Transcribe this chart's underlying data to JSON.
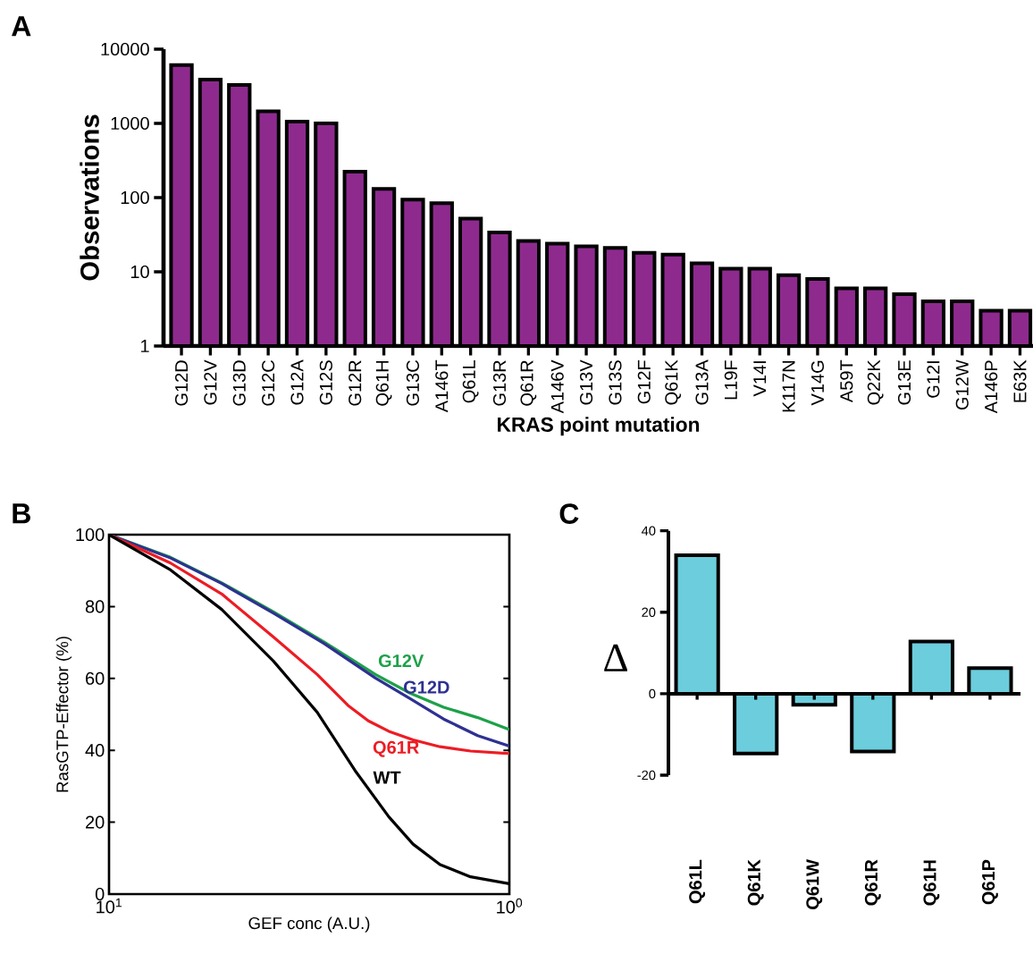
{
  "chart_data": [
    {
      "type": "bar",
      "title": "A",
      "xlabel": "KRAS point mutation",
      "ylabel": "Observations",
      "categories": [
        "G12D",
        "G12V",
        "G13D",
        "G12C",
        "G12A",
        "G12S",
        "G12R",
        "Q61H",
        "G13C",
        "A146T",
        "Q61L",
        "G13R",
        "Q61R",
        "A146V",
        "G13V",
        "G13S",
        "G12F",
        "Q61K",
        "G13A",
        "L19F",
        "V14I",
        "K117N",
        "V14G",
        "A59T",
        "Q22K",
        "G13E",
        "G12I",
        "G12W",
        "A146P",
        "E63K"
      ],
      "values": [
        6100,
        3900,
        3300,
        1450,
        1060,
        1000,
        224,
        131,
        94,
        84,
        52,
        34,
        26,
        24,
        22,
        21,
        18,
        17,
        13,
        11,
        11,
        9,
        8,
        6,
        6,
        5,
        4,
        4,
        3,
        3
      ],
      "color": "#8e2a8e",
      "log": "y",
      "ylim": [
        1,
        10000
      ],
      "yticks": [
        1,
        10,
        100,
        1000,
        10000
      ]
    },
    {
      "type": "line",
      "title": "B",
      "xlabel": "GEF conc (A.U.)",
      "ylabel": "RasGTP-Effector (%)",
      "log": "x",
      "xlim": [
        10,
        1
      ],
      "xticks": [
        {
          "value": 10,
          "label": "10$^{1}$"
        },
        {
          "value": 1,
          "label": "10$^{0}$"
        }
      ],
      "ylim": [
        0,
        100
      ],
      "yticks": [
        0,
        20,
        40,
        60,
        80,
        100
      ],
      "series": [
        {
          "name": "G12V",
          "color": "#1ea14a",
          "x": [
            10,
            7.02,
            5.23,
            3.89,
            2.9,
            2.16,
            1.77,
            1.46,
            1.2,
            1
          ],
          "values": [
            100,
            93.7,
            86.6,
            78.6,
            70.1,
            61.1,
            55.9,
            52.0,
            49.1,
            45.8
          ]
        },
        {
          "name": "G12D",
          "color": "#2e3192",
          "x": [
            10,
            7.02,
            5.23,
            3.89,
            2.9,
            2.16,
            1.77,
            1.46,
            1.2,
            1
          ],
          "values": [
            100,
            93.5,
            86.4,
            78.2,
            69.7,
            60.1,
            54.4,
            48.7,
            44.1,
            41.2
          ]
        },
        {
          "name": "Q61R",
          "color": "#ed1c24",
          "x": [
            10,
            7.02,
            5.23,
            3.89,
            3.02,
            2.53,
            2.25,
            2.0,
            1.74,
            1.49,
            1.25,
            1
          ],
          "values": [
            100,
            92.1,
            83.5,
            71.6,
            61.1,
            52.5,
            48.2,
            45.3,
            42.9,
            41.0,
            39.8,
            39.1
          ]
        },
        {
          "name": "WT",
          "color": "#000000",
          "x": [
            10,
            7.02,
            5.23,
            3.89,
            3.02,
            2.43,
            2.0,
            1.74,
            1.49,
            1.25,
            1
          ],
          "values": [
            100,
            90.2,
            79.2,
            64.9,
            50.6,
            34.4,
            21.5,
            13.9,
            8.2,
            4.8,
            2.9
          ]
        }
      ]
    },
    {
      "type": "bar",
      "title": "C",
      "ylabel": "Δ",
      "categories": [
        "Q61L",
        "Q61K",
        "Q61W",
        "Q61R",
        "Q61H",
        "Q61P"
      ],
      "values": [
        34.0,
        -14.7,
        -2.7,
        -14.2,
        12.8,
        6.3
      ],
      "color": "#6ccddc",
      "ylim": [
        -20,
        40
      ],
      "yticks": [
        -20,
        0,
        20,
        40
      ]
    }
  ]
}
